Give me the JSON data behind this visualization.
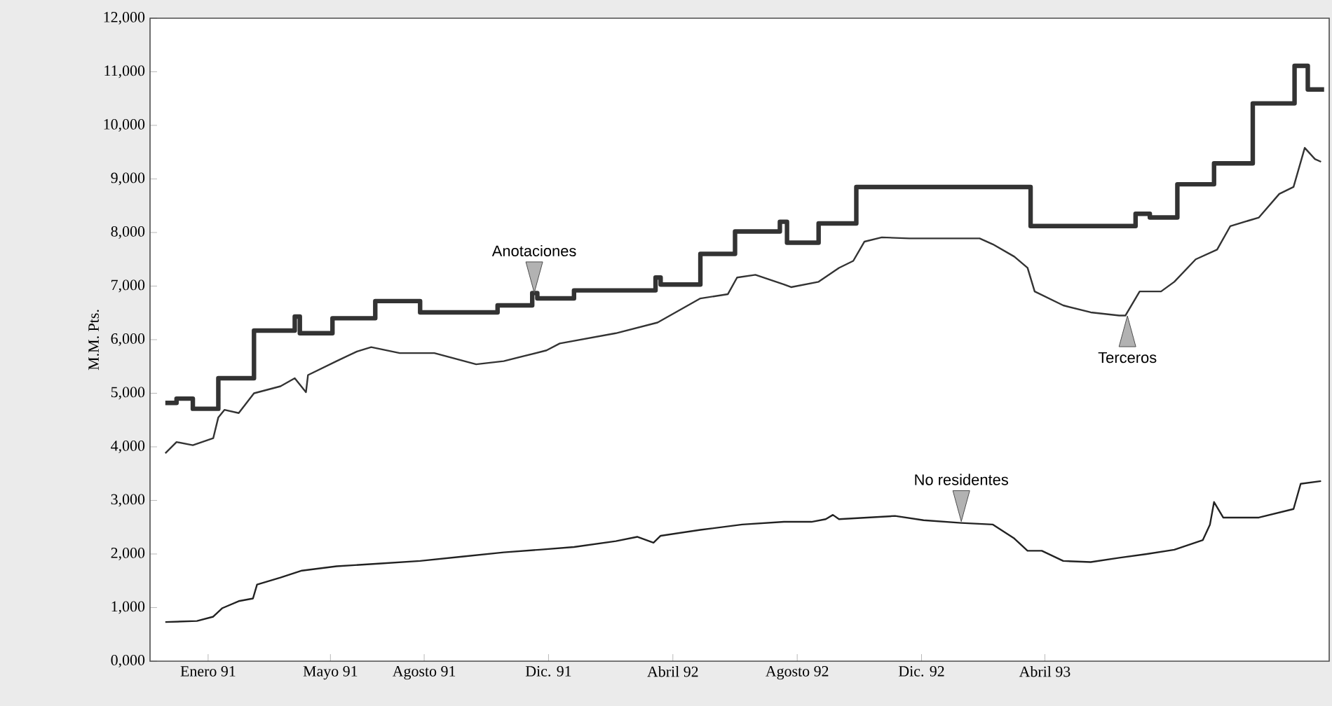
{
  "chart_data": {
    "type": "line",
    "ylabel": "M.M. Pts.",
    "xlim": [
      "1990-11-05",
      "1994-01-05"
    ],
    "xticks": [
      {
        "value": "1991-01-01",
        "label": "Enero 91"
      },
      {
        "value": "1991-05-01",
        "label": "Mayo 91"
      },
      {
        "value": "1991-08-01",
        "label": "Agosto 91"
      },
      {
        "value": "1991-12-01",
        "label": "Dic. 91"
      },
      {
        "value": "1992-04-01",
        "label": "Abril 92"
      },
      {
        "value": "1992-08-01",
        "label": "Agosto 92"
      },
      {
        "value": "1992-12-01",
        "label": "Dic. 92"
      },
      {
        "value": "1993-04-01",
        "label": "Abril 93"
      }
    ],
    "ylim": [
      0,
      12000
    ],
    "yticks": [
      {
        "value": 0,
        "label": "0,000"
      },
      {
        "value": 1000,
        "label": "1,000"
      },
      {
        "value": 2000,
        "label": "2,000"
      },
      {
        "value": 3000,
        "label": "3,000"
      },
      {
        "value": 4000,
        "label": "4,000"
      },
      {
        "value": 5000,
        "label": "5,000"
      },
      {
        "value": 6000,
        "label": "6,000"
      },
      {
        "value": 7000,
        "label": "7,000"
      },
      {
        "value": 8000,
        "label": "8,000"
      },
      {
        "value": 9000,
        "label": "9,000"
      },
      {
        "value": 10000,
        "label": "10,000"
      },
      {
        "value": 11000,
        "label": "11,000"
      },
      {
        "value": 12000,
        "label": "12,000"
      }
    ],
    "grid": false,
    "marker": "none",
    "line_style": "solid",
    "series": [
      {
        "type": "step",
        "color": "#333333",
        "x": [
          "1990-11-20",
          "1990-12-01",
          "1990-12-17",
          "1991-01-11",
          "1991-02-15",
          "1991-03-27",
          "1991-04-01",
          "1991-05-03",
          "1991-06-14",
          "1991-07-28",
          "1991-10-12",
          "1991-11-15",
          "1991-11-20",
          "1991-12-26",
          "1992-03-15",
          "1992-03-20",
          "1992-04-28",
          "1992-06-01",
          "1992-07-15",
          "1992-07-22",
          "1992-08-22",
          "1992-09-28",
          "1993-03-18",
          "1993-06-29",
          "1993-07-13",
          "1993-08-09",
          "1993-09-14",
          "1993-10-22",
          "1993-12-02",
          "1993-12-15",
          "1993-12-31"
        ],
        "values": [
          4820,
          4900,
          4710,
          5280,
          6170,
          6430,
          6120,
          6400,
          6720,
          6510,
          6640,
          6870,
          6770,
          6920,
          7160,
          7030,
          7600,
          8020,
          8200,
          7810,
          8170,
          8850,
          8120,
          8350,
          8280,
          8900,
          9290,
          10410,
          11110,
          10670,
          10670
        ]
      },
      {
        "color": "#333333",
        "x": [
          "1990-11-20",
          "1990-12-01",
          "1990-12-17",
          "1991-01-06",
          "1991-01-11",
          "1991-01-17",
          "1991-01-31",
          "1991-02-15",
          "1991-03-13",
          "1991-03-27",
          "1991-04-07",
          "1991-04-09",
          "1991-05-07",
          "1991-05-27",
          "1991-06-10",
          "1991-07-08",
          "1991-08-11",
          "1991-09-21",
          "1991-10-18",
          "1991-11-29",
          "1991-12-12",
          "1992-02-05",
          "1992-03-17",
          "1992-04-28",
          "1992-05-25",
          "1992-06-03",
          "1992-06-21",
          "1992-07-19",
          "1992-07-26",
          "1992-08-22",
          "1992-09-11",
          "1992-09-25",
          "1992-10-06",
          "1992-10-23",
          "1992-11-19",
          "1993-01-27",
          "1993-02-09",
          "1993-03-02",
          "1993-03-15",
          "1993-03-22",
          "1993-04-19",
          "1993-05-16",
          "1993-06-13",
          "1993-06-19",
          "1993-07-03",
          "1993-07-24",
          "1993-08-06",
          "1993-08-27",
          "1993-09-17",
          "1993-09-30",
          "1993-10-28",
          "1993-11-17",
          "1993-12-01",
          "1993-12-12",
          "1993-12-22",
          "1993-12-28"
        ],
        "values": [
          3880,
          4090,
          4030,
          4160,
          4550,
          4690,
          4630,
          5000,
          5130,
          5280,
          5020,
          5340,
          5600,
          5780,
          5860,
          5750,
          5750,
          5540,
          5600,
          5800,
          5930,
          6120,
          6320,
          6770,
          6850,
          7160,
          7210,
          7030,
          6980,
          7080,
          7340,
          7470,
          7830,
          7910,
          7890,
          7890,
          7780,
          7550,
          7340,
          6900,
          6640,
          6510,
          6450,
          6450,
          6900,
          6900,
          7080,
          7500,
          7680,
          8120,
          8280,
          8720,
          8850,
          9580,
          9370,
          9320
        ]
      },
      {
        "color": "#222222",
        "x": [
          "1990-11-20",
          "1990-12-21",
          "1991-01-06",
          "1991-01-15",
          "1991-01-31",
          "1991-02-14",
          "1991-02-18",
          "1991-03-13",
          "1991-04-03",
          "1991-05-07",
          "1991-06-17",
          "1991-07-28",
          "1991-09-07",
          "1991-10-18",
          "1991-11-22",
          "1991-12-26",
          "1992-02-05",
          "1992-02-26",
          "1992-03-13",
          "1992-03-20",
          "1992-04-28",
          "1992-06-08",
          "1992-07-19",
          "1992-08-15",
          "1992-08-29",
          "1992-09-05",
          "1992-09-11",
          "1992-11-05",
          "1992-12-03",
          "1993-01-09",
          "1993-02-09",
          "1993-03-02",
          "1993-03-15",
          "1993-03-29",
          "1993-04-19",
          "1993-05-16",
          "1993-06-13",
          "1993-07-10",
          "1993-08-06",
          "1993-09-03",
          "1993-09-10",
          "1993-09-14",
          "1993-09-23",
          "1993-10-28",
          "1993-12-01",
          "1993-12-08",
          "1993-12-28"
        ],
        "values": [
          730,
          750,
          830,
          990,
          1120,
          1170,
          1430,
          1560,
          1690,
          1770,
          1820,
          1870,
          1950,
          2030,
          2080,
          2130,
          2240,
          2320,
          2210,
          2340,
          2450,
          2550,
          2600,
          2600,
          2650,
          2730,
          2650,
          2710,
          2630,
          2580,
          2550,
          2290,
          2060,
          2060,
          1870,
          1850,
          1930,
          2000,
          2080,
          2260,
          2550,
          2970,
          2680,
          2680,
          2840,
          3310,
          3360
        ]
      }
    ],
    "annotations": [
      {
        "text": "Anotaciones",
        "x": "1991-11-17",
        "y": 6870
      },
      {
        "text": "Terceros",
        "x": "1993-06-21",
        "y": 6450
      },
      {
        "text": "No residentes",
        "x": "1993-01-09",
        "y": 2600
      }
    ]
  }
}
